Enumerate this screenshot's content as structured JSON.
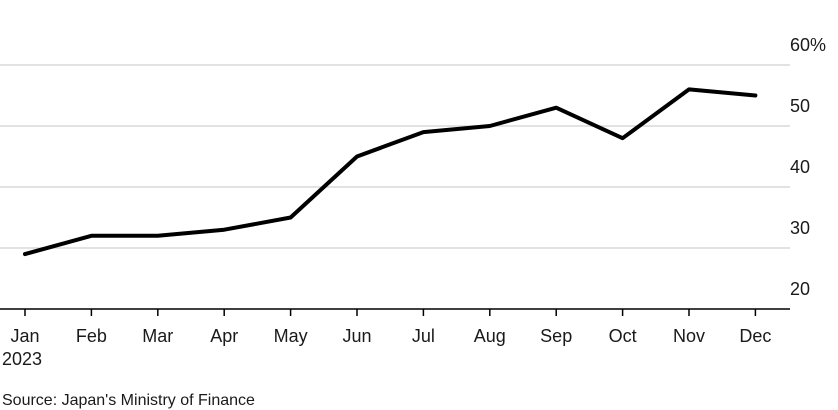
{
  "chart_data": {
    "type": "line",
    "title": "",
    "xlabel": "",
    "ylabel": "",
    "categories": [
      "Jan",
      "Feb",
      "Mar",
      "Apr",
      "May",
      "Jun",
      "Jul",
      "Aug",
      "Sep",
      "Oct",
      "Nov",
      "Dec"
    ],
    "year_label": "2023",
    "series": [
      {
        "values": [
          29,
          32,
          32,
          33,
          35,
          45,
          49,
          50,
          53,
          48,
          56,
          55
        ],
        "color": "#000000"
      }
    ],
    "ylim": [
      20,
      60
    ],
    "yticks": [
      20,
      30,
      40,
      50,
      60
    ],
    "ytick_labels": [
      "20",
      "30",
      "40",
      "50",
      "60%"
    ],
    "y_axis_side": "right",
    "grid": true,
    "legend": "none",
    "source": "Source: Japan's Ministry of Finance"
  }
}
